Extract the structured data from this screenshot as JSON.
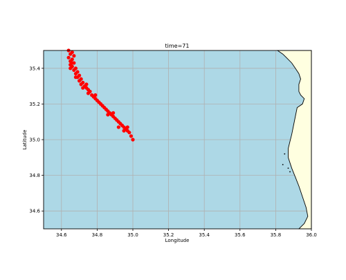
{
  "chart_data": {
    "type": "scatter",
    "title": "time=71",
    "xlabel": "Longitude",
    "ylabel": "Latitude",
    "xlim": [
      34.5,
      36.0
    ],
    "ylim": [
      34.5,
      35.5
    ],
    "x_ticks": [
      34.6,
      34.8,
      35.0,
      35.2,
      35.4,
      35.6,
      35.8,
      36.0
    ],
    "y_ticks": [
      34.6,
      34.8,
      35.0,
      35.2,
      35.4
    ],
    "x_tick_labels": [
      "34.6",
      "34.8",
      "35.0",
      "35.2",
      "35.4",
      "35.6",
      "35.8",
      "36.0"
    ],
    "y_tick_labels": [
      "34.6",
      "34.8",
      "35.0",
      "35.2",
      "35.4"
    ],
    "grid": true,
    "colors": {
      "sea": "#add8e6",
      "land": "#ffffe0",
      "coastline": "#000000",
      "points": "#ff0000"
    },
    "coastline": [
      [
        35.81,
        35.5
      ],
      [
        35.84,
        35.48
      ],
      [
        35.86,
        35.46
      ],
      [
        35.89,
        35.43
      ],
      [
        35.91,
        35.4
      ],
      [
        35.93,
        35.37
      ],
      [
        35.94,
        35.34
      ],
      [
        35.93,
        35.31
      ],
      [
        35.93,
        35.27
      ],
      [
        35.94,
        35.25
      ],
      [
        35.96,
        35.23
      ],
      [
        35.95,
        35.2
      ],
      [
        35.92,
        35.18
      ],
      [
        35.91,
        35.13
      ],
      [
        35.9,
        35.08
      ],
      [
        35.89,
        35.03
      ],
      [
        35.88,
        34.99
      ],
      [
        35.87,
        34.95
      ],
      [
        35.87,
        34.9
      ],
      [
        35.89,
        34.84
      ],
      [
        35.91,
        34.79
      ],
      [
        35.93,
        34.74
      ],
      [
        35.95,
        34.68
      ],
      [
        35.97,
        34.62
      ],
      [
        35.98,
        34.57
      ],
      [
        35.96,
        34.53
      ],
      [
        35.94,
        34.51
      ],
      [
        35.93,
        34.5
      ]
    ],
    "islands": [
      [
        35.85,
        34.92
      ],
      [
        35.84,
        34.86
      ],
      [
        35.87,
        34.84
      ],
      [
        35.88,
        34.82
      ]
    ],
    "points": [
      [
        34.64,
        35.5
      ],
      [
        34.66,
        35.49
      ],
      [
        34.65,
        35.48
      ],
      [
        34.67,
        35.47
      ],
      [
        34.64,
        35.46
      ],
      [
        34.66,
        35.45
      ],
      [
        34.65,
        35.44
      ],
      [
        34.67,
        35.43
      ],
      [
        34.65,
        35.42
      ],
      [
        34.66,
        35.41
      ],
      [
        34.68,
        35.4
      ],
      [
        34.65,
        35.4
      ],
      [
        34.67,
        35.39
      ],
      [
        34.69,
        35.38
      ],
      [
        34.68,
        35.37
      ],
      [
        34.7,
        35.36
      ],
      [
        34.69,
        35.35
      ],
      [
        34.71,
        35.34
      ],
      [
        34.7,
        35.33
      ],
      [
        34.72,
        35.32
      ],
      [
        34.71,
        35.31
      ],
      [
        34.73,
        35.3
      ],
      [
        34.72,
        35.29
      ],
      [
        34.74,
        35.29
      ],
      [
        34.75,
        35.28
      ],
      [
        34.76,
        35.27
      ],
      [
        34.75,
        35.26
      ],
      [
        34.77,
        35.25
      ],
      [
        34.78,
        35.24
      ],
      [
        34.79,
        35.23
      ],
      [
        34.8,
        35.22
      ],
      [
        34.81,
        35.21
      ],
      [
        34.82,
        35.2
      ],
      [
        34.83,
        35.19
      ],
      [
        34.84,
        35.18
      ],
      [
        34.85,
        35.17
      ],
      [
        34.86,
        35.16
      ],
      [
        34.87,
        35.15
      ],
      [
        34.88,
        35.14
      ],
      [
        34.89,
        35.13
      ],
      [
        34.9,
        35.12
      ],
      [
        34.91,
        35.11
      ],
      [
        34.92,
        35.1
      ],
      [
        34.93,
        35.09
      ],
      [
        34.94,
        35.08
      ],
      [
        34.95,
        35.07
      ],
      [
        34.96,
        35.06
      ],
      [
        34.97,
        35.05
      ],
      [
        34.98,
        35.04
      ],
      [
        34.99,
        35.02
      ],
      [
        35.0,
        35.0
      ],
      [
        34.92,
        35.07
      ],
      [
        34.95,
        35.05
      ],
      [
        34.86,
        35.14
      ],
      [
        34.89,
        35.15
      ],
      [
        34.79,
        35.25
      ],
      [
        34.74,
        35.31
      ],
      [
        34.66,
        35.43
      ],
      [
        34.68,
        35.35
      ],
      [
        34.97,
        35.07
      ]
    ]
  }
}
